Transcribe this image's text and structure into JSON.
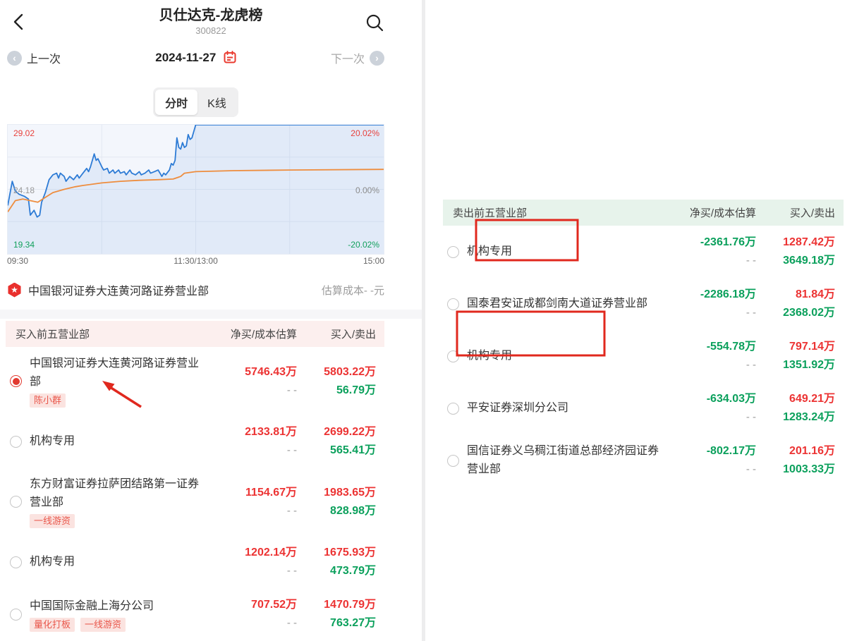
{
  "header": {
    "title": "贝仕达克-龙虎榜",
    "subtitle": "300822"
  },
  "date_nav": {
    "prev_label": "上一次",
    "date": "2024-11-27",
    "next_label": "下一次"
  },
  "tabs": [
    {
      "label": "分时",
      "active": true
    },
    {
      "label": "K线",
      "active": false
    }
  ],
  "chart_data": {
    "type": "line",
    "title": "贝仕达克 300822 分时走势 2024-11-27",
    "x_ticks": {
      "open": "09:30",
      "mid": "11:30/13:00",
      "close": "15:00"
    },
    "labels": {
      "price_high": "29.02",
      "pct_high": "20.02%",
      "price_mid": "24.18",
      "pct_mid": "0.00%",
      "price_low": "19.34",
      "pct_low": "-20.02%"
    },
    "ylim_pct": [
      -20.02,
      20.02
    ],
    "grid": true,
    "series": [
      {
        "name": "price-pct",
        "color": "#2d7bd5",
        "fill": "rgba(45,123,213,0.09)",
        "points": [
          [
            0,
            -5
          ],
          [
            0.012,
            2.5
          ],
          [
            0.02,
            -0.5
          ],
          [
            0.03,
            -1.5
          ],
          [
            0.045,
            -2.2
          ],
          [
            0.055,
            -3
          ],
          [
            0.06,
            -8
          ],
          [
            0.07,
            -6.5
          ],
          [
            0.078,
            -8.6
          ],
          [
            0.085,
            -8
          ],
          [
            0.09,
            -4
          ],
          [
            0.1,
            -1
          ],
          [
            0.11,
            3
          ],
          [
            0.12,
            4.5
          ],
          [
            0.13,
            5
          ],
          [
            0.135,
            3.5
          ],
          [
            0.14,
            5
          ],
          [
            0.15,
            4
          ],
          [
            0.155,
            2.5
          ],
          [
            0.165,
            4
          ],
          [
            0.175,
            3
          ],
          [
            0.185,
            4.5
          ],
          [
            0.19,
            3.5
          ],
          [
            0.2,
            5
          ],
          [
            0.21,
            6.5
          ],
          [
            0.215,
            5.5
          ],
          [
            0.22,
            7
          ],
          [
            0.23,
            11
          ],
          [
            0.235,
            9
          ],
          [
            0.24,
            9.5
          ],
          [
            0.25,
            7
          ],
          [
            0.255,
            6
          ],
          [
            0.265,
            6.5
          ],
          [
            0.27,
            5
          ],
          [
            0.28,
            6
          ],
          [
            0.285,
            5
          ],
          [
            0.295,
            6
          ],
          [
            0.3,
            5
          ],
          [
            0.31,
            5.5
          ],
          [
            0.315,
            4.5
          ],
          [
            0.325,
            6
          ],
          [
            0.33,
            5
          ],
          [
            0.34,
            4.5
          ],
          [
            0.35,
            5.5
          ],
          [
            0.355,
            4.5
          ],
          [
            0.365,
            5
          ],
          [
            0.375,
            6
          ],
          [
            0.38,
            5
          ],
          [
            0.39,
            5.5
          ],
          [
            0.4,
            6
          ],
          [
            0.405,
            5
          ],
          [
            0.41,
            4
          ],
          [
            0.415,
            5
          ],
          [
            0.42,
            4.5
          ],
          [
            0.43,
            6
          ],
          [
            0.435,
            8
          ],
          [
            0.44,
            7.5
          ],
          [
            0.445,
            9
          ],
          [
            0.45,
            16
          ],
          [
            0.455,
            13
          ],
          [
            0.46,
            12.5
          ],
          [
            0.465,
            14.5
          ],
          [
            0.47,
            13
          ],
          [
            0.475,
            13.5
          ],
          [
            0.48,
            17
          ],
          [
            0.485,
            15.5
          ],
          [
            0.49,
            16
          ],
          [
            0.5,
            20.02
          ],
          [
            1,
            20.02
          ]
        ]
      },
      {
        "name": "avg-pct",
        "color": "#ee8d3e",
        "fill": null,
        "points": [
          [
            0,
            -7
          ],
          [
            0.02,
            -3.5
          ],
          [
            0.04,
            -3
          ],
          [
            0.06,
            -3.5
          ],
          [
            0.08,
            -4
          ],
          [
            0.1,
            -2.5
          ],
          [
            0.12,
            -1
          ],
          [
            0.15,
            0
          ],
          [
            0.18,
            0.8
          ],
          [
            0.2,
            1.2
          ],
          [
            0.25,
            2
          ],
          [
            0.3,
            2.5
          ],
          [
            0.35,
            2.8
          ],
          [
            0.4,
            3
          ],
          [
            0.44,
            3.2
          ],
          [
            0.46,
            4
          ],
          [
            0.47,
            5
          ],
          [
            0.5,
            5.5
          ],
          [
            0.6,
            5.8
          ],
          [
            0.75,
            6
          ],
          [
            1,
            6.2
          ]
        ]
      }
    ]
  },
  "selected_branch": {
    "name": "中国银河证券大连黄河路证券营业部",
    "cost_label": "估算成本- -元"
  },
  "buy_table": {
    "header": {
      "name": "买入前五营业部",
      "col2": "净买/成本估算",
      "col3": "买入/卖出"
    },
    "rows": [
      {
        "name": "中国银河证券大连黄河路证券营业部",
        "tags": [
          "陈小群"
        ],
        "selected": true,
        "net": "5746.43万",
        "cost": "- -",
        "buy": "5803.22万",
        "sell": "56.79万"
      },
      {
        "name": "机构专用",
        "tags": [],
        "selected": false,
        "net": "2133.81万",
        "cost": "- -",
        "buy": "2699.22万",
        "sell": "565.41万"
      },
      {
        "name": "东方财富证券拉萨团结路第一证券营业部",
        "tags": [
          "一线游资"
        ],
        "selected": false,
        "net": "1154.67万",
        "cost": "- -",
        "buy": "1983.65万",
        "sell": "828.98万"
      },
      {
        "name": "机构专用",
        "tags": [],
        "selected": false,
        "net": "1202.14万",
        "cost": "- -",
        "buy": "1675.93万",
        "sell": "473.79万"
      },
      {
        "name": "中国国际金融上海分公司",
        "tags": [
          "量化打板",
          "一线游资"
        ],
        "selected": false,
        "net": "707.52万",
        "cost": "- -",
        "buy": "1470.79万",
        "sell": "763.27万"
      }
    ]
  },
  "sell_table": {
    "header": {
      "name": "卖出前五营业部",
      "col2": "净买/成本估算",
      "col3": "买入/卖出"
    },
    "rows": [
      {
        "name": "机构专用",
        "tags": [],
        "selected": false,
        "boxed": true,
        "net": "-2361.76万",
        "cost": "- -",
        "buy": "1287.42万",
        "sell": "3649.18万"
      },
      {
        "name": "国泰君安证成都剑南大道证券营业部",
        "tags": [],
        "selected": false,
        "boxed": false,
        "net": "-2286.18万",
        "cost": "- -",
        "buy": "81.84万",
        "sell": "2368.02万"
      },
      {
        "name": "机构专用",
        "tags": [],
        "selected": false,
        "boxed": true,
        "net": "-554.78万",
        "cost": "- -",
        "buy": "797.14万",
        "sell": "1351.92万"
      },
      {
        "name": "平安证券深圳分公司",
        "tags": [],
        "selected": false,
        "boxed": false,
        "net": "-634.03万",
        "cost": "- -",
        "buy": "649.21万",
        "sell": "1283.24万"
      },
      {
        "name": "国信证券义乌稠江街道总部经济园证券营业部",
        "tags": [],
        "selected": false,
        "boxed": false,
        "net": "-802.17万",
        "cost": "- -",
        "buy": "201.16万",
        "sell": "1003.33万"
      }
    ]
  },
  "colors": {
    "up_red": "#ec3333",
    "down_green": "#0ba05c",
    "annotation_red": "#e0281e",
    "buy_header_bg": "#fcefee",
    "sell_header_bg": "#e7f3eb",
    "price_line": "#2d7bd5",
    "avg_line": "#ee8d3e"
  }
}
